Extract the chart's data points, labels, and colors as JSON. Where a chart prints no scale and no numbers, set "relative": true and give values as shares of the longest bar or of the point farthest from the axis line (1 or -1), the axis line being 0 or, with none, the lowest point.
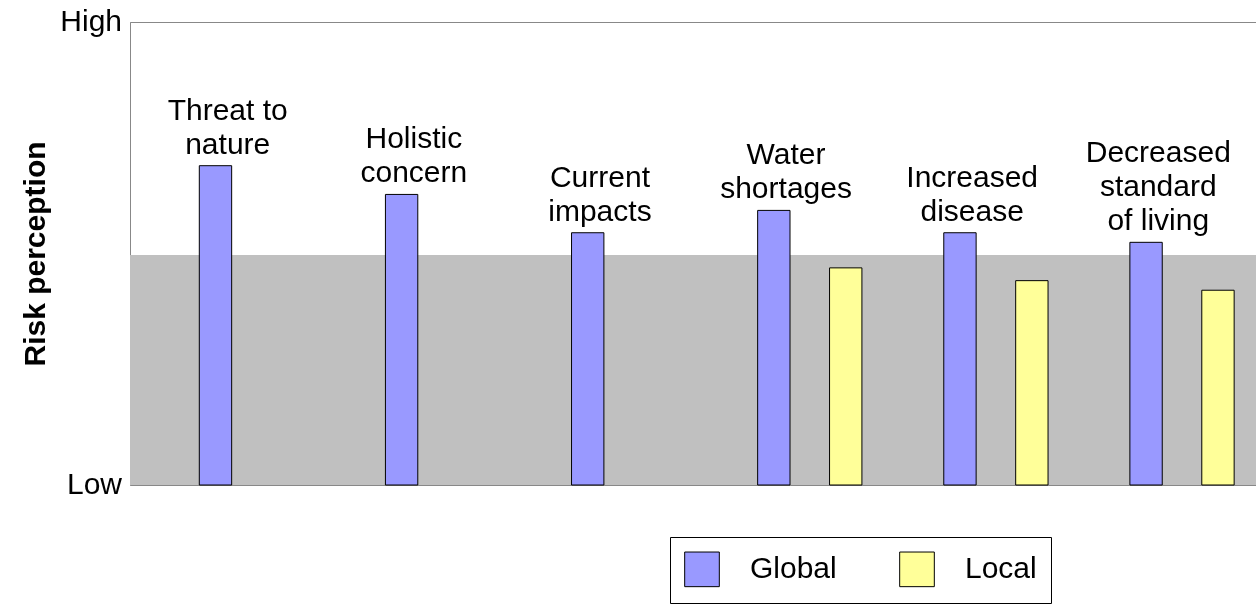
{
  "chart_data": {
    "type": "bar",
    "ylabel": "Risk perception",
    "relative": true,
    "categories": [
      "Threat to\nnature",
      "Holistic\nconcern",
      "Current\nimpacts",
      "Water\nshortages",
      "Increased\ndisease",
      "Decreased\nstandard\nof living"
    ],
    "series": [
      {
        "name": "Global",
        "color": "#9999ff",
        "values": [
          1,
          0.91,
          0.79,
          0.86,
          0.79,
          0.76
        ]
      },
      {
        "name": "Local",
        "color": "#ffff99",
        "values": [
          null,
          null,
          null,
          0.68,
          0.64,
          0.61
        ]
      }
    ],
    "ylim": [
      0,
      1.45
    ],
    "annotations": [
      "Low",
      "High"
    ],
    "bands": [
      {
        "axis": "y",
        "from": 0,
        "to": 0.72,
        "color": "#c0c0c0"
      }
    ],
    "legend": "bottom right"
  }
}
